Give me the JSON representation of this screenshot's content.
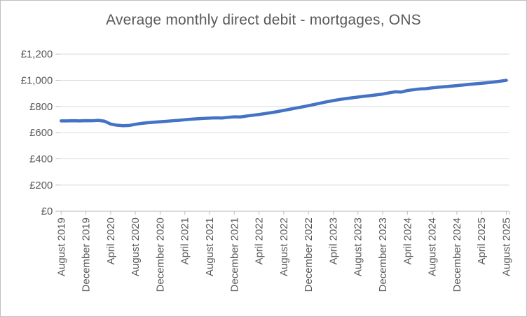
{
  "chart": {
    "title": "Average monthly direct debit - mortgages, ONS"
  },
  "colors": {
    "line": "#4472C4",
    "text": "#595959",
    "gridline": "#D9D9D9",
    "axis": "#BFBFBF",
    "border": "#BFBFBF",
    "background": "#FFFFFF"
  },
  "chart_data": {
    "type": "line",
    "title": "Average monthly direct debit - mortgages, ONS",
    "xlabel": "",
    "ylabel": "",
    "ylim": [
      0,
      1200
    ],
    "grid": "horizontal",
    "legend_position": "none",
    "y_axis": {
      "tick_values": [
        0,
        200,
        400,
        600,
        800,
        1000,
        1200
      ],
      "tick_labels": [
        "£0",
        "£200",
        "£400",
        "£600",
        "£800",
        "£1,000",
        "£1,200"
      ]
    },
    "x_axis": {
      "start_month": "August 2019",
      "end_month": "August 2025",
      "interval": "monthly",
      "tick_every_n_points": 4,
      "tick_labels": [
        "August 2019",
        "December 2019",
        "April 2020",
        "August 2020",
        "December 2020",
        "April 2021",
        "August 2021",
        "December 2021",
        "April 2022",
        "August 2022",
        "December 2022",
        "April 2023",
        "August 2023",
        "December 2023",
        "April 2024",
        "August 2024",
        "December 2024",
        "April 2025",
        "August 2025"
      ]
    },
    "series": [
      {
        "name": "Average monthly direct debit (£)",
        "color": "#4472C4",
        "values": [
          690,
          690,
          691,
          690,
          692,
          691,
          694,
          688,
          666,
          657,
          653,
          655,
          664,
          671,
          676,
          680,
          683,
          687,
          691,
          694,
          699,
          703,
          706,
          709,
          711,
          713,
          712,
          717,
          721,
          720,
          727,
          733,
          739,
          746,
          753,
          761,
          770,
          779,
          788,
          797,
          806,
          816,
          826,
          836,
          845,
          853,
          860,
          866,
          872,
          878,
          883,
          889,
          895,
          904,
          912,
          910,
          922,
          928,
          934,
          936,
          942,
          947,
          951,
          955,
          959,
          964,
          969,
          973,
          977,
          982,
          987,
          993,
          1000
        ]
      }
    ]
  }
}
